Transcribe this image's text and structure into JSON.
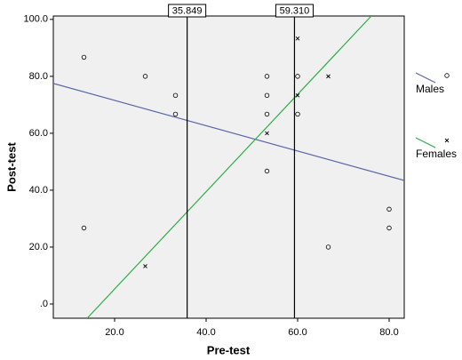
{
  "chart_data": {
    "type": "scatter",
    "x_label": "Pre-test",
    "y_label": "Post-test",
    "xlim": [
      6.6,
      83.3
    ],
    "ylim": [
      -5,
      101.2
    ],
    "xticks": [
      {
        "value": 20,
        "label": "20.0"
      },
      {
        "value": 40,
        "label": "40.0"
      },
      {
        "value": 60,
        "label": "60.0"
      },
      {
        "value": 80,
        "label": "80.0"
      }
    ],
    "yticks": [
      {
        "value": 0,
        "label": ".0"
      },
      {
        "value": 20,
        "label": "20.0"
      },
      {
        "value": 40,
        "label": "40.0"
      },
      {
        "value": 60,
        "label": "60.0"
      },
      {
        "value": 80,
        "label": "80.0"
      },
      {
        "value": 100,
        "label": "100.0"
      }
    ],
    "reference_lines": [
      {
        "value": 35.849,
        "label": "35.849"
      },
      {
        "value": 59.31,
        "label": "59.310"
      }
    ],
    "series": [
      {
        "name": "Males",
        "color": "#2b2bb5",
        "marker": "circle",
        "line_color": "#5a67a8",
        "x": [
          13.3,
          26.7,
          33.3,
          33.3,
          53.3,
          53.3,
          53.3,
          53.3,
          60,
          60,
          13.3,
          66.7,
          80,
          80
        ],
        "values": [
          86.7,
          80,
          73.3,
          66.7,
          80,
          73.3,
          66.7,
          46.7,
          80,
          66.7,
          26.7,
          20,
          33.3,
          26.7
        ],
        "fit": {
          "x": [
            6.6,
            83.3
          ],
          "values": [
            77.5,
            43.4
          ]
        }
      },
      {
        "name": "Females",
        "color": "#2fae46",
        "marker": "cross",
        "line_color": "#2fae46",
        "x": [
          26.7,
          53.3,
          60,
          60,
          66.7
        ],
        "values": [
          13.3,
          60,
          93.3,
          73.3,
          80
        ],
        "fit": {
          "x": [
            14.0,
            76.1
          ],
          "values": [
            -5,
            101.2
          ]
        }
      }
    ]
  }
}
